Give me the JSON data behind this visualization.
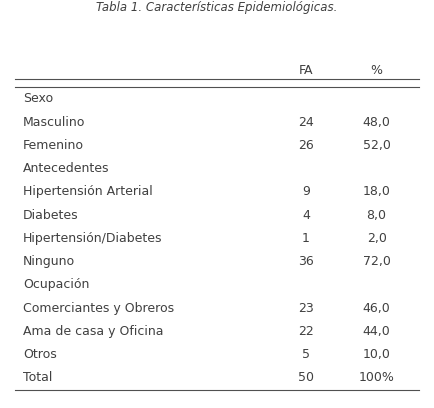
{
  "title": "Tabla 1. Características Epidemiológicas.",
  "col_headers": [
    "FA",
    "%"
  ],
  "rows": [
    {
      "label": "Sexo",
      "fa": "",
      "pct": "",
      "is_section": true,
      "bold": false
    },
    {
      "label": "Masculino",
      "fa": "24",
      "pct": "48,0",
      "is_section": false,
      "bold": false
    },
    {
      "label": "Femenino",
      "fa": "26",
      "pct": "52,0",
      "is_section": false,
      "bold": false
    },
    {
      "label": "Antecedentes",
      "fa": "",
      "pct": "",
      "is_section": true,
      "bold": false
    },
    {
      "label": "Hipertensión Arterial",
      "fa": "9",
      "pct": "18,0",
      "is_section": false,
      "bold": false
    },
    {
      "label": "Diabetes",
      "fa": "4",
      "pct": "8,0",
      "is_section": false,
      "bold": false
    },
    {
      "label": "Hipertensión/Diabetes",
      "fa": "1",
      "pct": "2,0",
      "is_section": false,
      "bold": false
    },
    {
      "label": "Ninguno",
      "fa": "36",
      "pct": "72,0",
      "is_section": false,
      "bold": false
    },
    {
      "label": "Ocupación",
      "fa": "",
      "pct": "",
      "is_section": true,
      "bold": false
    },
    {
      "label": "Comerciantes y Obreros",
      "fa": "23",
      "pct": "46,0",
      "is_section": false,
      "bold": false
    },
    {
      "label": "Ama de casa y Oficina",
      "fa": "22",
      "pct": "44,0",
      "is_section": false,
      "bold": false
    },
    {
      "label": "Otros",
      "fa": "5",
      "pct": "10,0",
      "is_section": false,
      "bold": false
    },
    {
      "label": "Total",
      "fa": "50",
      "pct": "100%",
      "is_section": false,
      "bold": false
    }
  ],
  "bg_color": "#ffffff",
  "text_color": "#404040",
  "header_color": "#404040",
  "line_color": "#505050",
  "font_size": 9.0,
  "header_font_size": 9.0
}
